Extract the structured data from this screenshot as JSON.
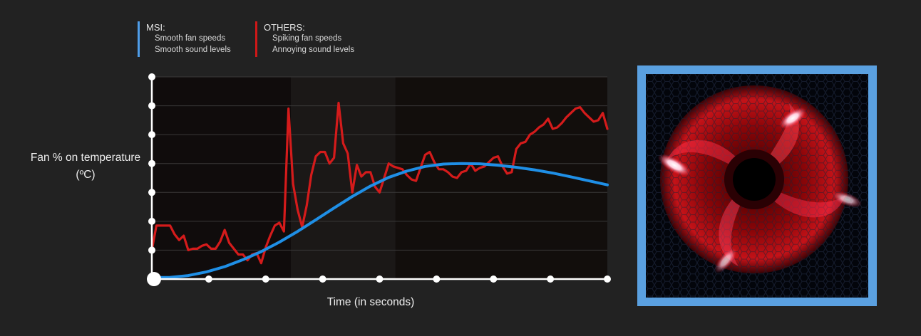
{
  "legend": {
    "msi": {
      "title": "MSI:",
      "items": [
        "Smooth fan speeds",
        "Smooth sound levels"
      ],
      "color": "#4f9de8"
    },
    "others": {
      "title": "OTHERS:",
      "items": [
        "Spiking fan speeds",
        "Annoying sound levels"
      ],
      "color": "#d01818"
    }
  },
  "chart_data": {
    "type": "line",
    "xlabel": "Time (in seconds)",
    "ylabel": "Fan % on temperature (ºC)",
    "xlim": [
      0,
      100
    ],
    "ylim": [
      0,
      7
    ],
    "grid": true,
    "x_ticks": 8,
    "y_ticks": 7,
    "series": [
      {
        "name": "MSI",
        "color": "#1f8fe6",
        "x": [
          0,
          4,
          8,
          12,
          16,
          20,
          24,
          28,
          32,
          36,
          40,
          44,
          48,
          52,
          56,
          60,
          64,
          68,
          72,
          76,
          80,
          84,
          88,
          92,
          96,
          100
        ],
        "y": [
          0.05,
          0.06,
          0.12,
          0.25,
          0.43,
          0.67,
          0.95,
          1.28,
          1.65,
          2.05,
          2.46,
          2.86,
          3.22,
          3.52,
          3.74,
          3.9,
          3.98,
          4.0,
          3.99,
          3.94,
          3.87,
          3.78,
          3.67,
          3.54,
          3.4,
          3.26
        ]
      },
      {
        "name": "OTHERS",
        "color": "#d41b1b",
        "x": [
          0,
          1,
          2,
          4,
          5,
          6,
          7,
          8,
          9,
          10,
          11,
          12,
          13,
          14,
          15,
          16,
          17,
          18,
          19,
          20,
          21,
          22,
          23,
          24,
          25,
          26,
          27,
          28,
          29,
          30,
          31,
          32,
          33,
          34,
          35,
          36,
          37,
          38,
          39,
          40,
          41,
          42,
          43,
          44,
          45,
          46,
          47,
          48,
          49,
          50,
          51,
          52,
          53,
          54,
          55,
          56,
          57,
          58,
          59,
          60,
          61,
          62,
          63,
          64,
          65,
          66,
          67,
          68,
          69,
          70,
          71,
          72,
          73,
          74,
          75,
          76,
          77,
          78,
          79,
          80,
          81,
          82,
          83,
          84,
          85,
          86,
          87,
          88,
          89,
          90,
          91,
          92,
          93,
          94,
          95,
          96,
          97,
          98,
          99,
          100
        ],
        "y": [
          1.0,
          1.85,
          1.85,
          1.85,
          1.55,
          1.35,
          1.5,
          1.0,
          1.05,
          1.05,
          1.15,
          1.2,
          1.05,
          1.05,
          1.3,
          1.7,
          1.25,
          1.05,
          0.85,
          0.85,
          0.65,
          0.85,
          0.9,
          0.55,
          1.1,
          1.5,
          1.85,
          1.95,
          1.65,
          5.9,
          3.3,
          2.4,
          1.8,
          2.55,
          3.6,
          4.25,
          4.4,
          4.4,
          4.0,
          4.2,
          6.1,
          4.7,
          4.35,
          3.0,
          3.95,
          3.55,
          3.7,
          3.7,
          3.2,
          3.0,
          3.5,
          4.0,
          3.9,
          3.85,
          3.8,
          3.6,
          3.45,
          3.4,
          3.85,
          4.3,
          4.4,
          4.05,
          3.8,
          3.8,
          3.7,
          3.55,
          3.5,
          3.7,
          3.75,
          4.0,
          3.75,
          3.85,
          3.9,
          4.05,
          4.2,
          4.25,
          3.9,
          3.65,
          3.7,
          4.5,
          4.7,
          4.75,
          5.0,
          5.1,
          5.25,
          5.35,
          5.55,
          5.2,
          5.25,
          5.4,
          5.6,
          5.75,
          5.9,
          5.95,
          5.75,
          5.6,
          5.45,
          5.5,
          5.75,
          5.2
        ]
      }
    ]
  }
}
